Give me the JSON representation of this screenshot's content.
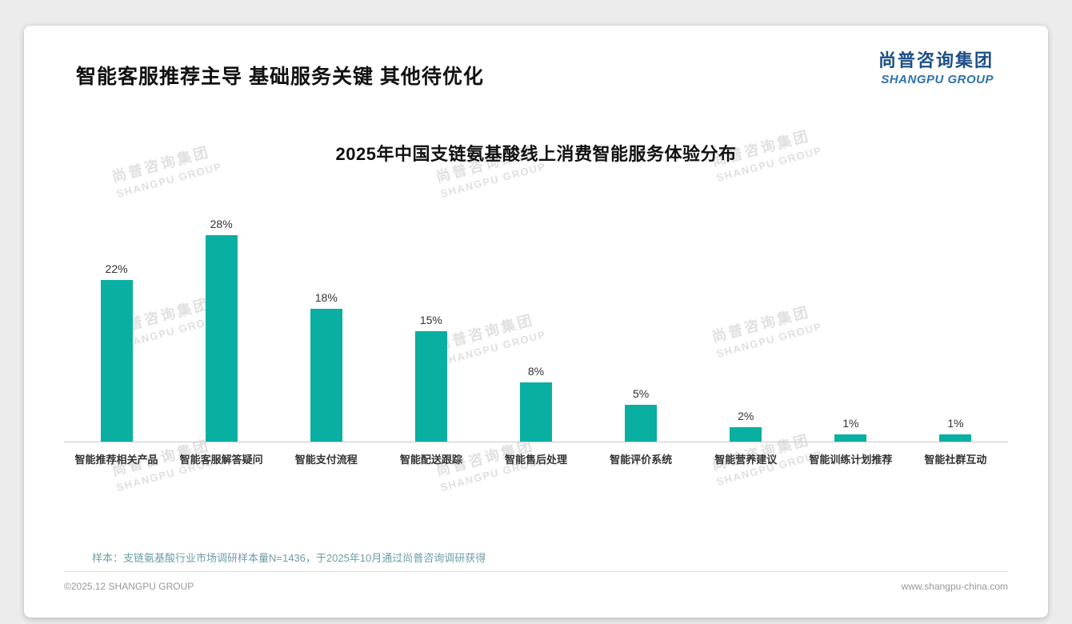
{
  "page": {
    "heading": "智能客服推荐主导 基础服务关键 其他待优化",
    "footnote": "样本：支链氨基酸行业市场调研样本量N=1436，于2025年10月通过尚普咨询调研获得",
    "footer_left": "©2025.12 SHANGPU GROUP",
    "footer_right": "www.shangpu-china.com"
  },
  "logo": {
    "cn": "尚普咨询集团",
    "en": "SHANGPU GROUP"
  },
  "watermark": {
    "cn": "尚普咨询集团",
    "en": "SHANGPU GROUP"
  },
  "colors": {
    "bar": "#09B0A2",
    "heading_text": "#111111",
    "logo_cn": "#1C4F87",
    "logo_en": "#2D72B0",
    "footnote": "#6E9EA6",
    "footer_text": "#999999",
    "axis_line": "#C9C9C9"
  },
  "chart_data": {
    "type": "bar",
    "title": "2025年中国支链氨基酸线上消费智能服务体验分布",
    "categories": [
      "智能推荐相关产品",
      "智能客服解答疑问",
      "智能支付流程",
      "智能配送跟踪",
      "智能售后处理",
      "智能评价系统",
      "智能营养建议",
      "智能训练计划推荐",
      "智能社群互动"
    ],
    "values": [
      22,
      28,
      18,
      15,
      8,
      5,
      2,
      1,
      1
    ],
    "value_labels": [
      "22%",
      "28%",
      "18%",
      "15%",
      "8%",
      "5%",
      "2%",
      "1%",
      "1%"
    ],
    "xlabel": "",
    "ylabel": "",
    "ylim": [
      0,
      30
    ],
    "grid": false,
    "legend": false,
    "bar_color": "#09B0A2"
  }
}
